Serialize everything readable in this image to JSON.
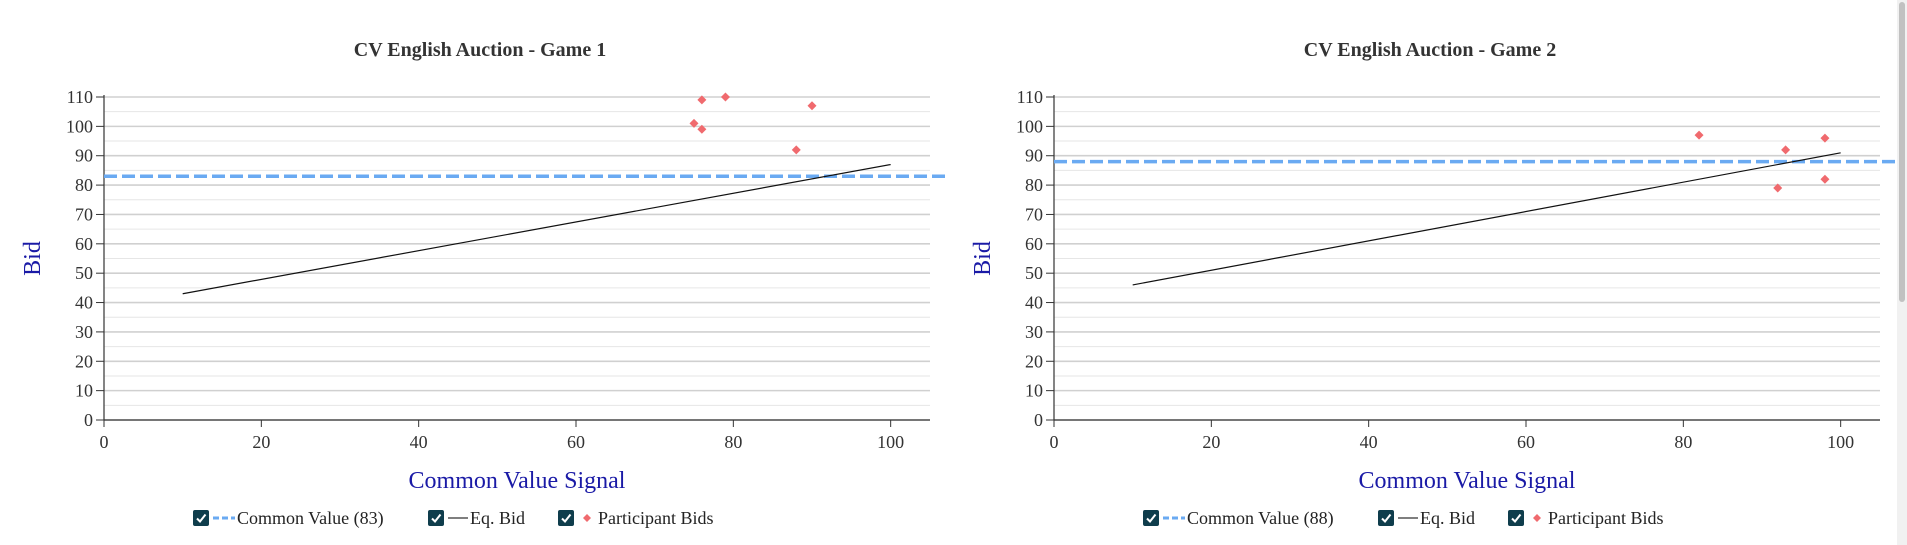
{
  "colors": {
    "common_value": "#6aaaf2",
    "eq_bid": "#111111",
    "participant": "#f06a6e",
    "axis_label": "#1a1aa6",
    "grid": "#d0d0d0",
    "checkbox": "#0f3d4c"
  },
  "chart_data": [
    {
      "type": "scatter",
      "title": "CV English Auction - Game 1",
      "xlabel": "Common Value Signal",
      "ylabel": "Bid",
      "xlim": [
        0,
        105
      ],
      "ylim": [
        0,
        110
      ],
      "x_ticks": [
        0,
        20,
        40,
        60,
        80,
        100
      ],
      "y_ticks": [
        0,
        10,
        20,
        30,
        40,
        50,
        60,
        70,
        80,
        90,
        100,
        110
      ],
      "grid": true,
      "common_value": 83,
      "eq_bid": {
        "x": [
          10,
          100
        ],
        "y": [
          43,
          87
        ]
      },
      "participant_bids": [
        {
          "x": 75,
          "y": 101
        },
        {
          "x": 76,
          "y": 99
        },
        {
          "x": 76,
          "y": 109
        },
        {
          "x": 79,
          "y": 110
        },
        {
          "x": 88,
          "y": 92
        },
        {
          "x": 90,
          "y": 107
        }
      ],
      "legend": {
        "common_value": "Common Value (83)",
        "eq_bid": "Eq. Bid",
        "participant": "Participant Bids"
      }
    },
    {
      "type": "scatter",
      "title": "CV English Auction - Game 2",
      "xlabel": "Common Value Signal",
      "ylabel": "Bid",
      "xlim": [
        0,
        105
      ],
      "ylim": [
        0,
        110
      ],
      "x_ticks": [
        0,
        20,
        40,
        60,
        80,
        100
      ],
      "y_ticks": [
        0,
        10,
        20,
        30,
        40,
        50,
        60,
        70,
        80,
        90,
        100,
        110
      ],
      "grid": true,
      "common_value": 88,
      "eq_bid": {
        "x": [
          10,
          100
        ],
        "y": [
          46,
          91
        ]
      },
      "participant_bids": [
        {
          "x": 82,
          "y": 97
        },
        {
          "x": 92,
          "y": 79
        },
        {
          "x": 93,
          "y": 92
        },
        {
          "x": 98,
          "y": 82
        },
        {
          "x": 98,
          "y": 96
        }
      ],
      "legend": {
        "common_value": "Common Value (88)",
        "eq_bid": "Eq. Bid",
        "participant": "Participant Bids"
      }
    }
  ]
}
